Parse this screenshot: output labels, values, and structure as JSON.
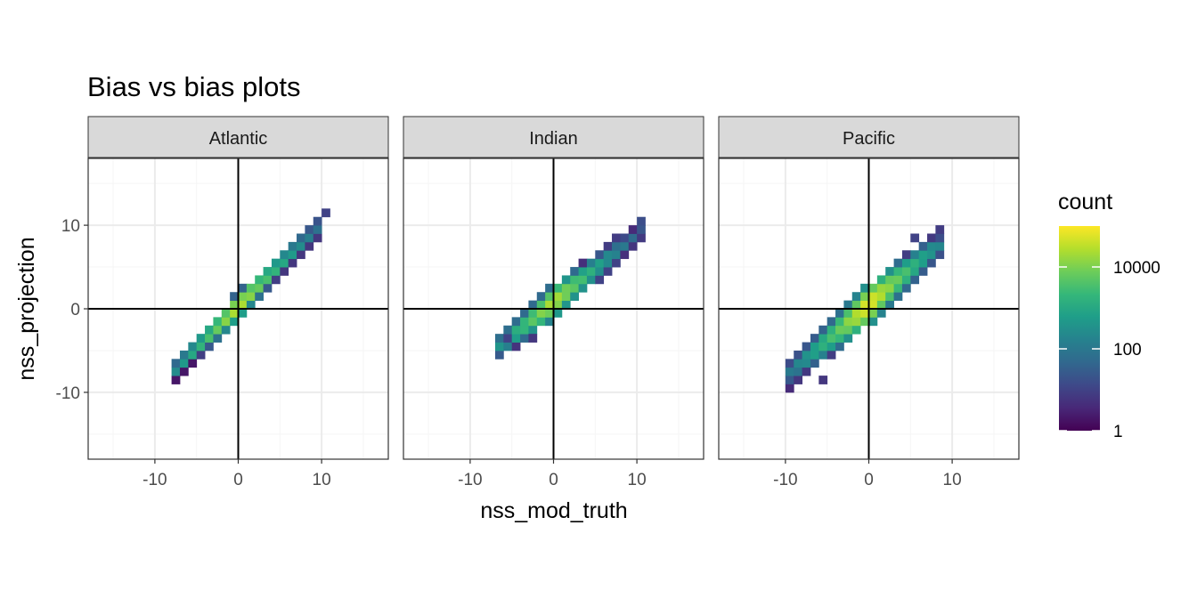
{
  "chart_data": {
    "type": "heatmap",
    "title": "Bias vs bias plots",
    "xlabel": "nss_mod_truth",
    "ylabel": "nss_projection",
    "xlim": [
      -18,
      18
    ],
    "ylim": [
      -18,
      18
    ],
    "x_ticks": [
      -10,
      0,
      10
    ],
    "y_ticks": [
      -10,
      0,
      10
    ],
    "x_tick_labels": [
      "-10",
      "0",
      "10"
    ],
    "y_tick_labels": [
      "-10",
      "0",
      "10"
    ],
    "grid": true,
    "reference_lines": {
      "x": 0,
      "y": 0
    },
    "bin_width": 1,
    "panels": [
      {
        "name": "Atlantic",
        "diagonal": {
          "x_from": -7.5,
          "x_to": 10,
          "slope": 1.0,
          "intercept": 0.3,
          "spread": 1.3,
          "peak_x": 0,
          "peak_log10": 4.6,
          "falloff": 0.27
        },
        "extra_cells": [
          [
            10,
            11,
            1
          ],
          [
            9,
            10,
            1.3
          ]
        ]
      },
      {
        "name": "Indian",
        "diagonal": {
          "x_from": -6.5,
          "x_to": 10.5,
          "slope": 0.8,
          "intercept": 0.8,
          "spread": 1.7,
          "peak_x": 0,
          "peak_log10": 4.5,
          "falloff": 0.29
        },
        "extra_cells": [
          [
            -6,
            -4,
            1
          ],
          [
            -3,
            -4,
            0.8
          ],
          [
            10,
            10,
            1.2
          ]
        ]
      },
      {
        "name": "Pacific",
        "diagonal": {
          "x_from": -10,
          "x_to": 8.5,
          "slope": 0.85,
          "intercept": 0.5,
          "spread": 2.1,
          "peak_x": 0,
          "peak_log10": 4.9,
          "falloff": 0.3
        },
        "extra_cells": [
          [
            -9,
            -9,
            0.8
          ],
          [
            -6,
            -9,
            0.8
          ],
          [
            8,
            8,
            1.2
          ],
          [
            5,
            8,
            1.0
          ]
        ]
      }
    ],
    "legend": {
      "title": "count",
      "scale": "log10",
      "colormap": "viridis",
      "colors": [
        "#440154",
        "#482878",
        "#3e4989",
        "#31688e",
        "#26828e",
        "#1f9e89",
        "#35b779",
        "#6dcd59",
        "#b4de2c",
        "#fde725"
      ],
      "breaks": [
        1,
        100,
        10000
      ],
      "break_labels": [
        "1",
        "100",
        "10000"
      ],
      "range_log10": [
        0,
        5
      ]
    },
    "colors": {
      "panel_border": "#333333",
      "strip_fill": "#d9d9d9",
      "grid_major": "#ebebeb",
      "grid_minor": "#f5f5f5",
      "reference_line": "#000000"
    }
  }
}
